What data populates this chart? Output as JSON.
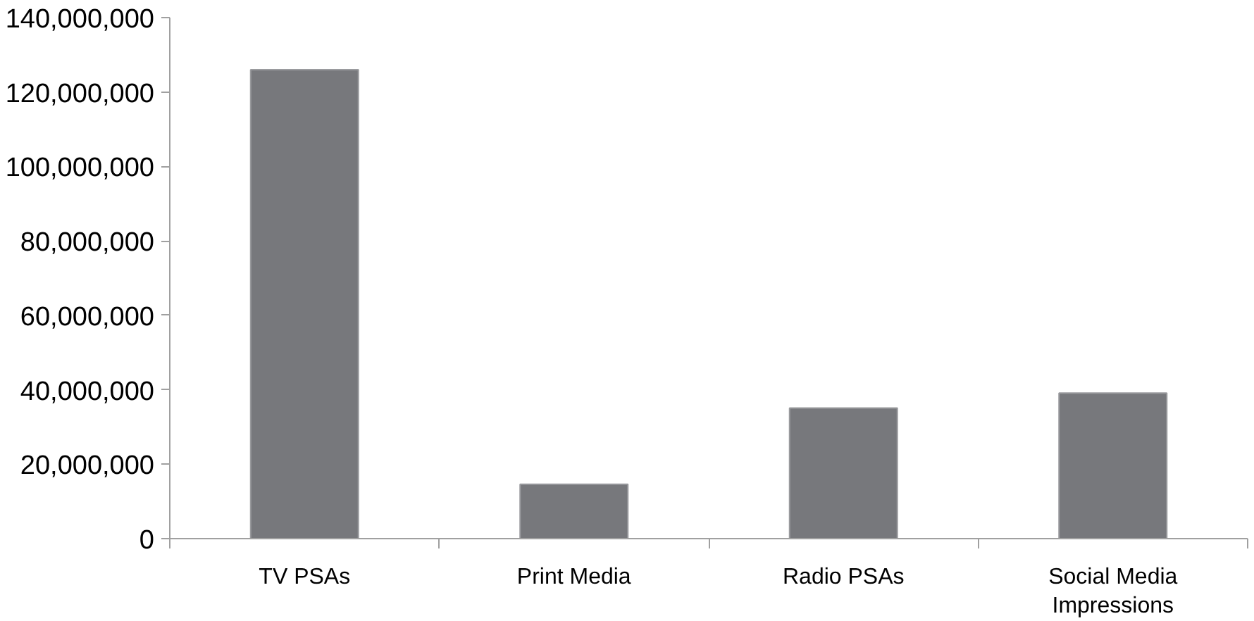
{
  "chart_data": {
    "type": "bar",
    "categories": [
      "TV PSAs",
      "Print Media",
      "Radio PSAs",
      "Social Media Impressions"
    ],
    "values": [
      126000000,
      14600000,
      35100000,
      39100000
    ],
    "color": "#77787c",
    "ylim": [
      0,
      140000000
    ],
    "yticks": [
      0,
      {
        "value": 20000000,
        "label": "20,000,000"
      },
      {
        "value": 40000000,
        "label": "40,000,000"
      },
      {
        "value": 60000000,
        "label": "60,000,000"
      },
      {
        "value": 80000000,
        "label": "80,000,000"
      },
      {
        "value": 100000000,
        "label": "100,000,000"
      },
      {
        "value": 120000000,
        "label": "120,000,000"
      },
      {
        "value": 140000000,
        "label": "140,000,000"
      }
    ],
    "grid": false
  }
}
